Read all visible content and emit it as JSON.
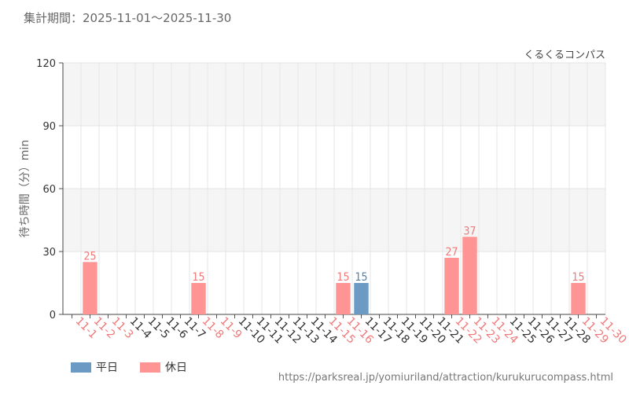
{
  "header": {
    "period_label": "集計期間：2025-11-01〜2025-11-30"
  },
  "legend": {
    "weekday_label": "平日",
    "holiday_label": "休日"
  },
  "footer": {
    "source_url": "https://parksreal.jp/yomiuriland/attraction/kurukurucompass.html"
  },
  "colors": {
    "weekday": "#6b9ac4",
    "holiday": "#ff9494",
    "weekday_text": "#4d7fa8",
    "holiday_text": "#f07878",
    "weekday_label": "#333333"
  },
  "chart_data": {
    "type": "bar",
    "attraction_label": "くるくるコンパス",
    "ylabel": "待ち時間（分）min",
    "ylim": [
      0,
      120
    ],
    "yticks": [
      0,
      30,
      60,
      90,
      120
    ],
    "grid": true,
    "categories": [
      "11-1",
      "11-2",
      "11-3",
      "11-4",
      "11-5",
      "11-6",
      "11-7",
      "11-8",
      "11-9",
      "11-10",
      "11-11",
      "11-12",
      "11-13",
      "11-14",
      "11-15",
      "11-16",
      "11-17",
      "11-18",
      "11-19",
      "11-20",
      "11-21",
      "11-22",
      "11-23",
      "11-24",
      "11-25",
      "11-26",
      "11-27",
      "11-28",
      "11-29",
      "11-30"
    ],
    "day_type": [
      "holiday",
      "holiday",
      "holiday",
      "weekday",
      "weekday",
      "weekday",
      "weekday",
      "holiday",
      "holiday",
      "weekday",
      "weekday",
      "weekday",
      "weekday",
      "weekday",
      "holiday",
      "holiday",
      "weekday",
      "weekday",
      "weekday",
      "weekday",
      "weekday",
      "holiday",
      "holiday",
      "holiday",
      "weekday",
      "weekday",
      "weekday",
      "weekday",
      "holiday",
      "holiday"
    ],
    "values": [
      null,
      25,
      null,
      null,
      null,
      null,
      null,
      15,
      null,
      null,
      null,
      null,
      null,
      null,
      null,
      15,
      15,
      null,
      null,
      null,
      null,
      27,
      37,
      null,
      null,
      null,
      null,
      null,
      15,
      null
    ]
  }
}
